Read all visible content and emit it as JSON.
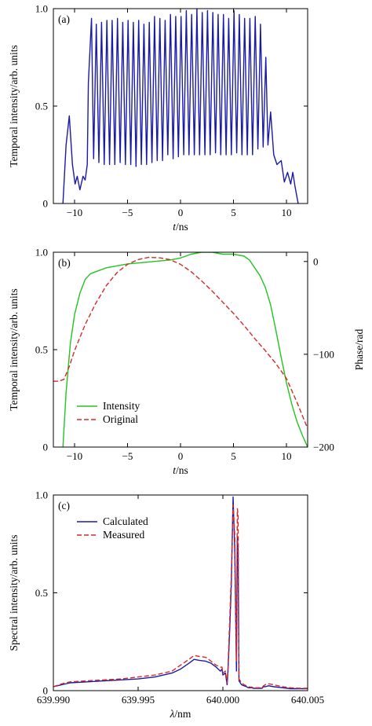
{
  "chart_data": [
    {
      "panel": "(a)",
      "type": "line",
      "xlabel": "t/ns",
      "ylabel": "Temporal intensity/arb. units",
      "xlim": [
        -12,
        12
      ],
      "ylim": [
        0,
        1.0
      ],
      "xticks": [
        "−10",
        "−5",
        "0",
        "5",
        "10"
      ],
      "xtick_values": [
        -10,
        -5,
        0,
        5,
        10
      ],
      "yticks": [
        "0",
        "0.5",
        "1.0"
      ],
      "ytick_values": [
        0,
        0.5,
        1.0
      ],
      "colors": {
        "series": "#1a1aa6"
      },
      "series": [
        {
          "name": "",
          "x": [
            -11.1,
            -10.8,
            -10.5,
            -10.2,
            -9.95,
            -9.75,
            -9.5,
            -9.2,
            -9.0,
            -8.8,
            -8.7,
            -8.4,
            -8.2,
            -7.95,
            -7.7,
            -7.45,
            -7.2,
            -6.95,
            -6.7,
            -6.45,
            -6.2,
            -5.95,
            -5.7,
            -5.45,
            -5.2,
            -4.95,
            -4.7,
            -4.45,
            -4.2,
            -3.95,
            -3.7,
            -3.45,
            -3.2,
            -2.95,
            -2.7,
            -2.45,
            -2.2,
            -1.95,
            -1.7,
            -1.45,
            -1.2,
            -0.95,
            -0.7,
            -0.45,
            -0.2,
            0.05,
            0.3,
            0.55,
            0.8,
            1.05,
            1.3,
            1.55,
            1.8,
            2.05,
            2.3,
            2.55,
            2.8,
            3.05,
            3.3,
            3.55,
            3.8,
            4.05,
            4.3,
            4.55,
            4.8,
            5.05,
            5.3,
            5.55,
            5.8,
            6.05,
            6.3,
            6.55,
            6.8,
            7.05,
            7.3,
            7.55,
            7.8,
            8.05,
            8.25,
            8.5,
            8.8,
            9.1,
            9.5,
            9.8,
            10.1,
            10.4,
            10.6,
            10.8,
            11.1
          ],
          "values": [
            0.0,
            0.3,
            0.45,
            0.2,
            0.1,
            0.14,
            0.07,
            0.14,
            0.12,
            0.2,
            0.62,
            0.95,
            0.23,
            0.92,
            0.21,
            0.93,
            0.2,
            0.94,
            0.2,
            0.94,
            0.2,
            0.95,
            0.21,
            0.93,
            0.2,
            0.94,
            0.2,
            0.93,
            0.19,
            0.94,
            0.2,
            0.92,
            0.2,
            0.93,
            0.21,
            0.96,
            0.22,
            0.95,
            0.22,
            0.94,
            0.25,
            0.97,
            0.23,
            0.96,
            0.24,
            0.96,
            0.25,
            0.99,
            0.25,
            0.97,
            0.25,
            1.0,
            0.25,
            0.98,
            0.25,
            0.99,
            0.25,
            0.98,
            0.26,
            0.97,
            0.25,
            0.97,
            0.25,
            0.95,
            0.25,
            0.99,
            0.26,
            0.97,
            0.25,
            0.95,
            0.25,
            0.95,
            0.25,
            0.96,
            0.28,
            0.92,
            0.29,
            0.75,
            0.3,
            0.47,
            0.25,
            0.2,
            0.22,
            0.11,
            0.16,
            0.1,
            0.16,
            0.09,
            0.0
          ]
        }
      ]
    },
    {
      "panel": "(b)",
      "type": "line",
      "xlabel": "t/ns",
      "ylabel": "Temporal intensity/arb. units",
      "y2label": "Phase/rad",
      "xlim": [
        -12,
        12
      ],
      "ylim": [
        0,
        1.0
      ],
      "y2lim": [
        -200,
        10
      ],
      "xticks": [
        "−10",
        "−5",
        "0",
        "5",
        "10"
      ],
      "xtick_values": [
        -10,
        -5,
        0,
        5,
        10
      ],
      "yticks": [
        "0",
        "0.5",
        "1.0"
      ],
      "ytick_values": [
        0,
        0.5,
        1.0
      ],
      "y2ticks": [
        "0",
        "−100",
        "−200"
      ],
      "y2tick_values": [
        0,
        -100,
        -200
      ],
      "legend": {
        "position": "lower-left",
        "entries": [
          "Intensity",
          "Original"
        ]
      },
      "colors": {
        "intensity": "#22c322",
        "original": "#d42a2a"
      },
      "series": [
        {
          "name": "Intensity",
          "axis": "left",
          "x": [
            -11.1,
            -10.8,
            -10.4,
            -10.0,
            -9.5,
            -9.0,
            -8.5,
            -8.0,
            -7.0,
            -5.0,
            -3.0,
            -1.0,
            0.0,
            1.0,
            2.0,
            3.0,
            4.0,
            5.0,
            6.0,
            6.5,
            7.0,
            7.5,
            8.0,
            8.5,
            9.0,
            9.5,
            10.0,
            10.5,
            11.0,
            11.5,
            12.0
          ],
          "values": [
            0.0,
            0.28,
            0.53,
            0.68,
            0.79,
            0.86,
            0.89,
            0.9,
            0.92,
            0.94,
            0.95,
            0.96,
            0.97,
            0.99,
            1.0,
            1.0,
            0.99,
            0.99,
            0.98,
            0.96,
            0.92,
            0.88,
            0.82,
            0.73,
            0.6,
            0.46,
            0.33,
            0.22,
            0.13,
            0.06,
            0.0
          ]
        },
        {
          "name": "Original",
          "axis": "right",
          "dashed": true,
          "x": [
            -12,
            -11.5,
            -11.0,
            -10.5,
            -10.0,
            -9.0,
            -8.0,
            -7.0,
            -6.0,
            -5.0,
            -4.0,
            -3.0,
            -2.0,
            -1.0,
            0.0,
            1.0,
            2.0,
            3.0,
            4.0,
            5.0,
            6.0,
            7.0,
            8.0,
            9.0,
            10.0,
            11.0,
            12.0
          ],
          "values": [
            -129,
            -129,
            -127,
            -113,
            -96,
            -68,
            -45,
            -26,
            -12,
            -3,
            2,
            4.5,
            4,
            2,
            -3,
            -11,
            -21,
            -32,
            -44,
            -56,
            -69,
            -83,
            -96,
            -110,
            -126,
            -152,
            -180
          ]
        }
      ]
    },
    {
      "panel": "(c)",
      "type": "line",
      "xlabel": "λ/nm",
      "ylabel": "Spectral intensity/arb. units",
      "xlim": [
        639.99,
        640.005
      ],
      "ylim": [
        0,
        1.0
      ],
      "xticks": [
        "639.990",
        "639.995",
        "640.000",
        "640.005"
      ],
      "xtick_values": [
        639.99,
        639.995,
        640.0,
        640.005
      ],
      "yticks": [
        "0",
        "0.5",
        "1.0"
      ],
      "ytick_values": [
        0,
        0.5,
        1.0
      ],
      "legend": {
        "position": "top-left",
        "entries": [
          "Calculated",
          "Measured"
        ]
      },
      "colors": {
        "calculated": "#1a1aa6",
        "measured": "#d42a2a"
      },
      "series": [
        {
          "name": "Calculated",
          "x": [
            639.99,
            639.9905,
            639.991,
            639.992,
            639.993,
            639.994,
            639.995,
            639.996,
            639.997,
            639.9975,
            639.998,
            639.9983,
            639.9986,
            639.999,
            639.9993,
            639.9996,
            639.99985,
            639.99995,
            640.0,
            640.00015,
            640.0002,
            640.00025,
            640.0003,
            640.0004,
            640.0005,
            640.0006,
            640.0007,
            640.0008,
            640.00085,
            640.0009,
            640.00095,
            640.0011,
            640.00125,
            640.0014,
            640.0015,
            640.0016,
            640.0017,
            640.0018,
            640.0019,
            640.002,
            640.0021,
            640.0022,
            640.0023,
            640.0024,
            640.0025,
            640.0027,
            640.003,
            640.0035,
            640.004,
            640.0045,
            640.005
          ],
          "values": [
            0.02,
            0.03,
            0.04,
            0.045,
            0.05,
            0.055,
            0.06,
            0.07,
            0.09,
            0.11,
            0.14,
            0.16,
            0.155,
            0.15,
            0.14,
            0.12,
            0.1,
            0.11,
            0.08,
            0.09,
            0.06,
            0.03,
            0.1,
            0.3,
            0.55,
            0.99,
            0.72,
            0.1,
            0.78,
            0.72,
            0.05,
            0.03,
            0.025,
            0.02,
            0.015,
            0.015,
            0.015,
            0.012,
            0.012,
            0.012,
            0.012,
            0.012,
            0.012,
            0.02,
            0.02,
            0.025,
            0.02,
            0.015,
            0.01,
            0.01,
            0.01
          ]
        },
        {
          "name": "Measured",
          "dashed": true,
          "x": [
            639.99,
            639.9905,
            639.991,
            639.992,
            639.993,
            639.994,
            639.995,
            639.996,
            639.997,
            639.9975,
            639.998,
            639.9983,
            639.9986,
            639.999,
            639.9993,
            639.9996,
            639.99985,
            639.99995,
            640.0,
            640.00015,
            640.0002,
            640.00025,
            640.0003,
            640.0004,
            640.0005,
            640.0006,
            640.0007,
            640.0008,
            640.00085,
            640.0009,
            640.00095,
            640.0011,
            640.00125,
            640.0014,
            640.0015,
            640.0016,
            640.0017,
            640.0018,
            640.0019,
            640.002,
            640.0021,
            640.0022,
            640.0023,
            640.0024,
            640.0025,
            640.0027,
            640.003,
            640.0035,
            640.004,
            640.0045,
            640.005
          ],
          "values": [
            0.02,
            0.035,
            0.045,
            0.05,
            0.055,
            0.06,
            0.07,
            0.08,
            0.1,
            0.13,
            0.16,
            0.18,
            0.175,
            0.17,
            0.15,
            0.13,
            0.12,
            0.12,
            0.09,
            0.1,
            0.07,
            0.04,
            0.12,
            0.35,
            0.6,
            0.95,
            0.8,
            0.15,
            0.93,
            0.9,
            0.06,
            0.04,
            0.03,
            0.025,
            0.02,
            0.018,
            0.018,
            0.015,
            0.015,
            0.015,
            0.015,
            0.015,
            0.015,
            0.025,
            0.03,
            0.035,
            0.03,
            0.02,
            0.015,
            0.012,
            0.012
          ]
        }
      ]
    }
  ]
}
